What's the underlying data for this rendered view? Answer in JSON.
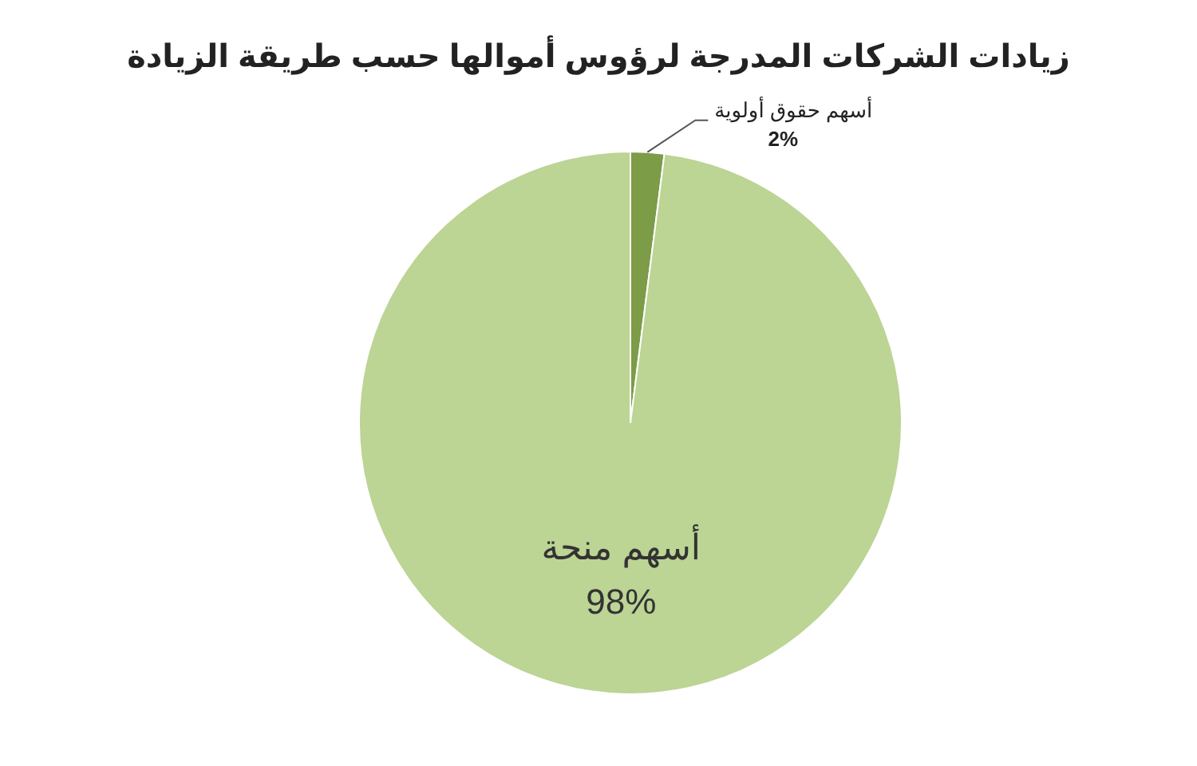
{
  "chart_data": {
    "type": "pie",
    "title": "زيادات الشركات المدرجة لرؤوس أموالها حسب طريقة الزيادة",
    "categories": [
      "أسهم حقوق أولوية",
      "أسهم منحة"
    ],
    "values": [
      2,
      98
    ],
    "colors": [
      "#7c9c47",
      "#bcd494"
    ],
    "value_labels": [
      "2%",
      "98%"
    ]
  }
}
